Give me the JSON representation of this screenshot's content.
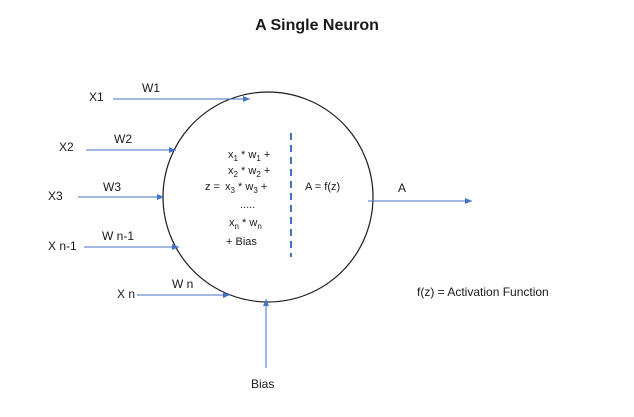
{
  "title": "A Single Neuron",
  "inputs": [
    {
      "name": "X1",
      "weight": "W1"
    },
    {
      "name": "X2",
      "weight": "W2"
    },
    {
      "name": "X3",
      "weight": "W3"
    },
    {
      "name": "X n-1",
      "weight": "W n-1"
    },
    {
      "name": "X n",
      "weight": "W n"
    }
  ],
  "equation": {
    "lhs": "z =",
    "terms": [
      {
        "x": "x",
        "xs": "1",
        "w": "w",
        "ws": "1",
        "op": "+"
      },
      {
        "x": "x",
        "xs": "2",
        "w": "w",
        "ws": "2",
        "op": "+"
      },
      {
        "x": "x",
        "xs": "3",
        "w": "w",
        "ws": "3",
        "op": "+"
      },
      {
        "x": "x",
        "xs": "n",
        "w": "w",
        "ws": "n",
        "op": ""
      }
    ],
    "ellipsis": ".....",
    "times": "*",
    "bias_term": "+ Bias"
  },
  "activation_expr": "A = f(z)",
  "output": "A",
  "bias": "Bias",
  "legend": "f(z)  = Activation Function",
  "colors": {
    "arrow": "#4472c4",
    "circle": "#1a1a1a",
    "divider": "#4472c4",
    "text": "#1a1a1a"
  }
}
